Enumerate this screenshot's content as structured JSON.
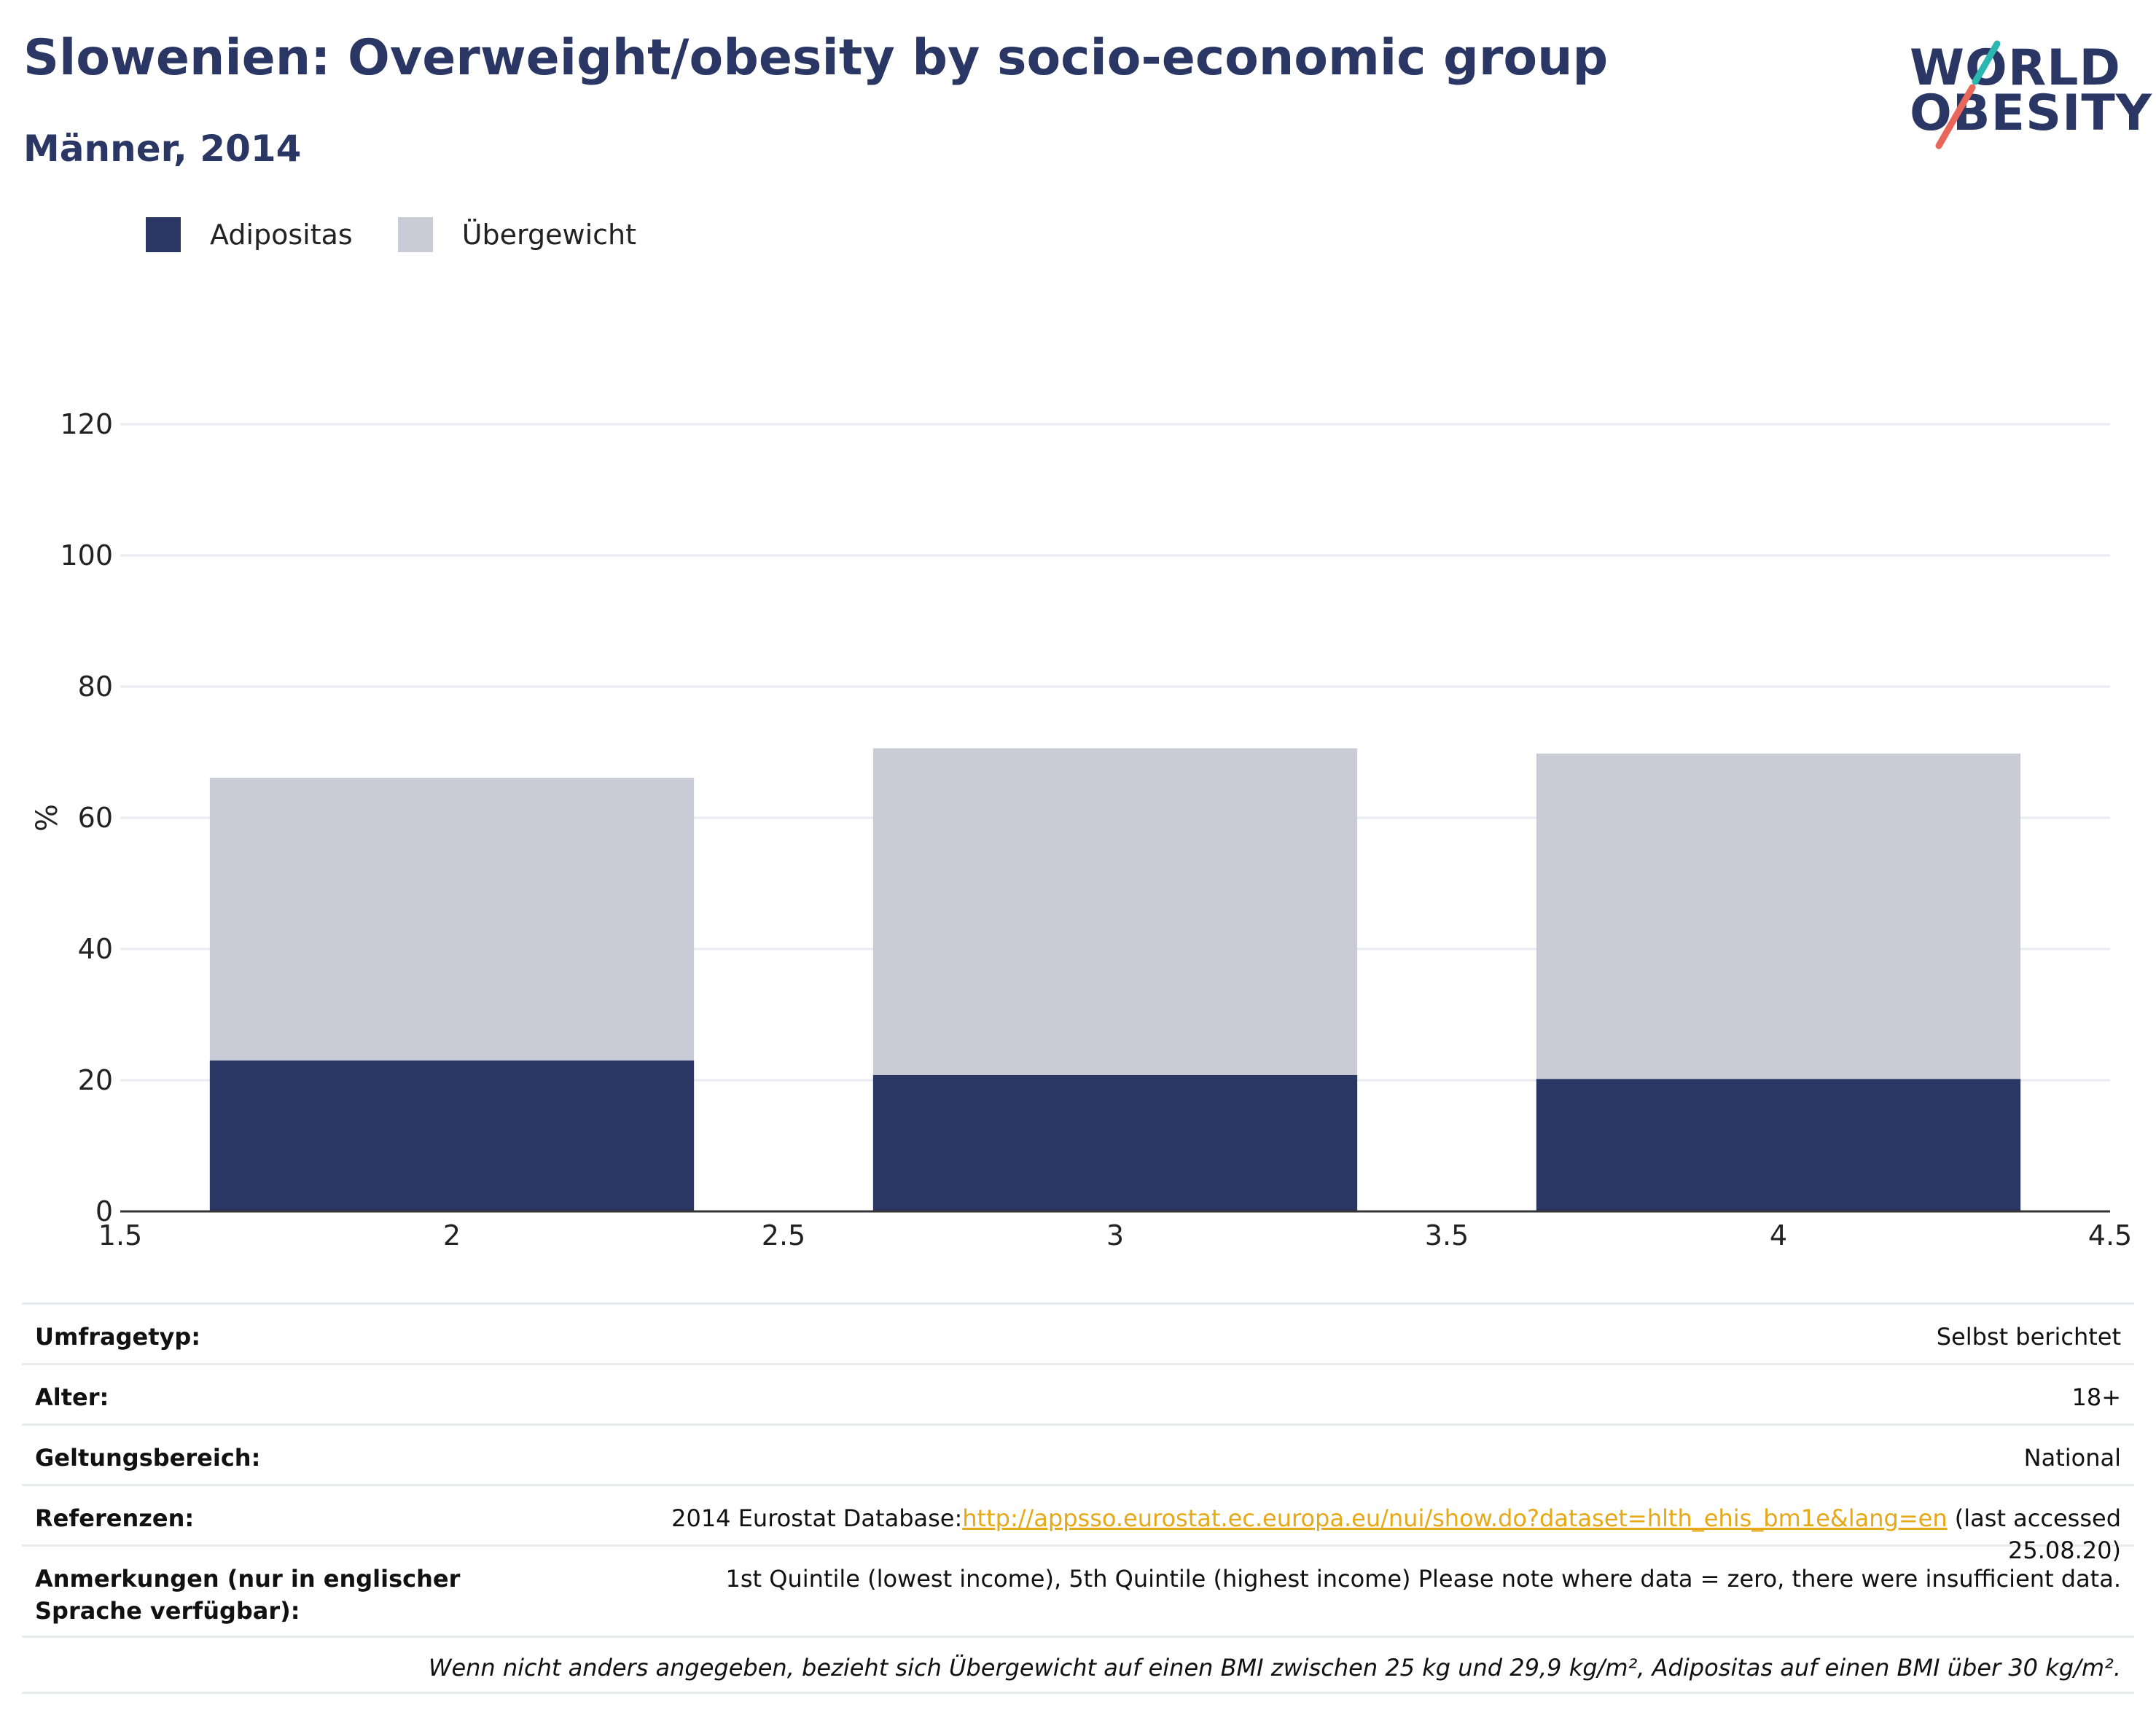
{
  "header": {
    "title": "Slowenien: Overweight/obesity by socio-economic group",
    "subtitle": "Männer, 2014",
    "logo_line1": "WORLD",
    "logo_line2": "OBESITY"
  },
  "colors": {
    "obesity": "#2a3663",
    "overweight": "#c9ccd7",
    "accent_teal": "#2ab7b0",
    "accent_red": "#e8665a",
    "link": "#e6a817"
  },
  "legend": [
    {
      "label": "Adipositas",
      "color": "#2a3663"
    },
    {
      "label": "Übergewicht",
      "color": "#c9ccd7"
    }
  ],
  "chart_data": {
    "type": "bar",
    "stacked": true,
    "x": [
      2,
      3,
      4
    ],
    "series": [
      {
        "name": "Adipositas",
        "values": [
          23,
          20.8,
          20.2
        ]
      },
      {
        "name": "Übergewicht",
        "values": [
          43.1,
          49.8,
          49.6
        ]
      }
    ],
    "totals": [
      66.1,
      70.6,
      69.8
    ],
    "ylabel": "%",
    "ylim": [
      0,
      120
    ],
    "xlim": [
      1.5,
      4.5
    ],
    "yticks": [
      0,
      20,
      40,
      60,
      80,
      100,
      120
    ],
    "xticks": [
      "1.5",
      "2",
      "2.5",
      "3",
      "3.5",
      "4",
      "4.5"
    ],
    "grid": true,
    "legend_position": "top-left"
  },
  "info": {
    "survey_type": {
      "key": "Umfragetyp:",
      "value": "Selbst berichtet"
    },
    "age": {
      "key": "Alter:",
      "value": "18+"
    },
    "scope": {
      "key": "Geltungsbereich:",
      "value": "National"
    },
    "references": {
      "key": "Referenzen:",
      "prefix": "2014 Eurostat Database:",
      "link": "http://appsso.eurostat.ec.europa.eu/nui/show.do?dataset=hlth_ehis_bm1e&lang=en",
      "suffix": " (last accessed 25.08.20)"
    },
    "notes": {
      "key": "Anmerkungen (nur in englischer Sprache verfügbar):",
      "value": "1st Quintile (lowest income), 5th Quintile (highest income) Please note where data = zero, there were insufficient data."
    },
    "footnote": "Wenn nicht anders angegeben, bezieht sich Übergewicht auf einen BMI zwischen 25 kg und 29,9 kg/m², Adipositas auf einen BMI über 30 kg/m²."
  }
}
